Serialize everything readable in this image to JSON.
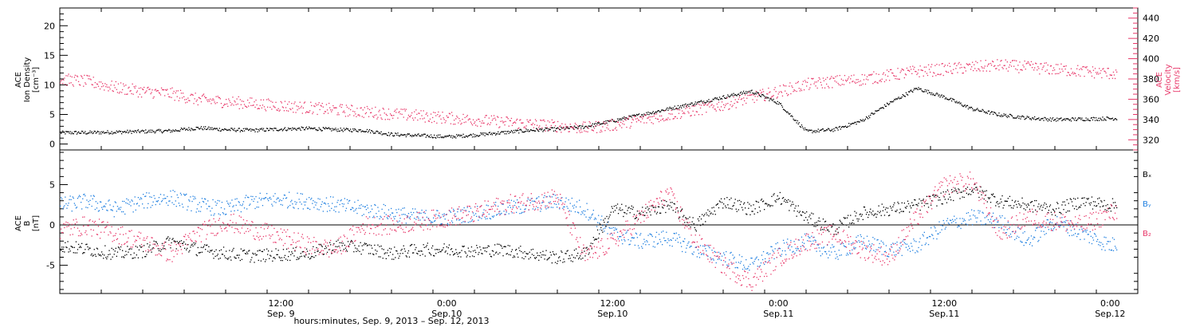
{
  "colors": {
    "black": "#000000",
    "pink": "#e8386a",
    "blue": "#1f7fe0"
  },
  "chart_data": [
    {
      "type": "scatter",
      "panel": "top",
      "ylabel_left": [
        "ACE",
        "Ion Density",
        "[cm⁻³]"
      ],
      "ylabel_right": [
        "ACE",
        "Velocity",
        "[km/s]"
      ],
      "left_ylim": [
        -1,
        23
      ],
      "left_ticks": [
        "0",
        "5",
        "10",
        "15",
        "20"
      ],
      "right_ylim": [
        310,
        450
      ],
      "right_ticks": [
        "320",
        "340",
        "360",
        "380",
        "400",
        "420",
        "440"
      ],
      "series": [
        {
          "color": "black",
          "axis": "left",
          "x_hours": [
            0,
            2,
            4,
            6,
            8,
            10,
            12,
            14,
            16,
            18,
            20,
            22,
            24,
            26,
            28,
            30,
            32,
            34,
            36,
            38,
            40,
            42,
            44,
            46,
            48,
            50,
            52,
            54,
            56,
            58,
            60,
            62,
            64,
            66,
            68,
            70,
            72,
            74,
            76,
            78,
            80,
            82,
            84,
            86,
            88,
            90,
            92,
            94,
            96,
            98,
            100,
            102,
            104,
            106,
            108,
            110,
            112,
            114,
            116,
            118,
            120,
            122
          ],
          "values": [
            2.0,
            2.0,
            2.1,
            2.2,
            2.3,
            2.8,
            2.5,
            2.4,
            2.6,
            2.7,
            2.5,
            2.4,
            1.7,
            1.5,
            1.3,
            1.6,
            2.0,
            2.4,
            2.6,
            3.0,
            4.0,
            5.0,
            6.0,
            7.0,
            8.0,
            9.0,
            7.0,
            2.2,
            2.5,
            4.0,
            7.0,
            9.5,
            8.0,
            6.0,
            5.0,
            4.5,
            4.2,
            4.3,
            4.4,
            4.5,
            4.6,
            4.8,
            5.0,
            5.5,
            5.8,
            6.0,
            3.8,
            3.6,
            3.5,
            3.5,
            3.4,
            3.5,
            3.6,
            3.5,
            3.6,
            3.7,
            3.5,
            3.6,
            3.8,
            3.9,
            4.2,
            4.5
          ],
          "spread": 0.3
        },
        {
          "color": "pink",
          "axis": "right",
          "x_hours": [
            0,
            2,
            4,
            6,
            8,
            10,
            12,
            14,
            16,
            18,
            20,
            22,
            24,
            26,
            28,
            30,
            32,
            34,
            36,
            38,
            40,
            42,
            44,
            46,
            48,
            50,
            52,
            54,
            56,
            58,
            60,
            62,
            64,
            66,
            68,
            70,
            72,
            74,
            76,
            78,
            80,
            82,
            84,
            86,
            88,
            90,
            92,
            94,
            96,
            98,
            100,
            102,
            104,
            106,
            108,
            110,
            112,
            114,
            116,
            118,
            120,
            122
          ],
          "values": [
            380,
            378,
            372,
            368,
            366,
            360,
            358,
            356,
            354,
            352,
            350,
            348,
            346,
            344,
            342,
            340,
            338,
            336,
            334,
            332,
            335,
            340,
            345,
            350,
            355,
            362,
            368,
            375,
            378,
            380,
            384,
            388,
            390,
            392,
            394,
            392,
            390,
            388,
            386,
            384,
            385,
            388,
            392,
            394,
            396,
            395,
            386,
            380,
            378,
            382,
            388,
            392,
            395,
            396,
            398,
            396,
            394,
            396,
            398,
            400,
            398,
            396
          ],
          "spread": 6
        }
      ]
    },
    {
      "type": "scatter",
      "panel": "bottom",
      "ylabel_left": [
        "ACE",
        "B",
        "[nT]"
      ],
      "ylim": [
        -8.5,
        9.3
      ],
      "ticks": [
        "-5",
        "0",
        "5"
      ],
      "zero_line": true,
      "legend": [
        "Bₓ",
        "Bᵧ",
        "B₂"
      ],
      "series": [
        {
          "color": "black",
          "name": "Bₓ",
          "x_hours": [
            0,
            2,
            4,
            6,
            8,
            10,
            12,
            14,
            16,
            18,
            20,
            22,
            24,
            26,
            28,
            30,
            32,
            34,
            36,
            38,
            40,
            42,
            44,
            46,
            48,
            50,
            52,
            54,
            56,
            58,
            60,
            62,
            64,
            66,
            68,
            70,
            72,
            74,
            76,
            78,
            80,
            82,
            84,
            86,
            88,
            90,
            92,
            94,
            96,
            98,
            100,
            102,
            104,
            106,
            108,
            110,
            112,
            114,
            116,
            118,
            120,
            122
          ],
          "values": [
            -2.5,
            -3.0,
            -3.5,
            -3.2,
            -2.0,
            -3.0,
            -3.5,
            -3.8,
            -3.6,
            -3.5,
            -2.5,
            -2.8,
            -3.5,
            -3.0,
            -3.0,
            -3.2,
            -3.0,
            -3.5,
            -4.0,
            -3.5,
            2.0,
            1.5,
            2.5,
            0.0,
            3.0,
            2.0,
            3.5,
            1.0,
            -0.5,
            1.5,
            2.0,
            2.5,
            3.5,
            4.5,
            3.0,
            2.5,
            2.0,
            3.0,
            2.5,
            3.0,
            3.5,
            4.0,
            3.5,
            2.0,
            1.0,
            0.5,
            -0.5,
            1.0,
            2.0,
            0.5,
            -0.5,
            1.0,
            0.0,
            -0.5,
            1.0,
            0.5,
            0.0,
            -1.0,
            -1.5,
            -1.0,
            -1.5,
            -2.0
          ],
          "spread": 0.8
        },
        {
          "color": "blue",
          "name": "Bᵧ",
          "x_hours": [
            0,
            2,
            4,
            6,
            8,
            10,
            12,
            14,
            16,
            18,
            20,
            22,
            24,
            26,
            28,
            30,
            32,
            34,
            36,
            38,
            40,
            42,
            44,
            46,
            48,
            50,
            52,
            54,
            56,
            58,
            60,
            62,
            64,
            66,
            68,
            70,
            72,
            74,
            76,
            78,
            80,
            82,
            84,
            86,
            88,
            90,
            92,
            94,
            96,
            98,
            100,
            102,
            104,
            106,
            108,
            110,
            112,
            114,
            116,
            118,
            120,
            122
          ],
          "values": [
            2.5,
            3.0,
            2.0,
            3.0,
            3.5,
            2.5,
            2.0,
            3.0,
            3.2,
            3.0,
            2.5,
            2.0,
            1.5,
            1.0,
            1.0,
            1.5,
            2.0,
            2.5,
            3.0,
            2.0,
            -1.0,
            -2.0,
            -1.5,
            -3.0,
            -4.0,
            -5.0,
            -3.0,
            -2.0,
            -3.5,
            -2.0,
            -3.0,
            -2.5,
            0.0,
            1.0,
            0.5,
            -2.0,
            0.5,
            -1.0,
            -2.5,
            -1.5,
            -3.0,
            -1.0,
            0.0,
            -2.0,
            -2.0,
            -3.0,
            -3.0,
            -2.5,
            -2.0,
            -3.0,
            -2.5,
            -3.5,
            -2.0,
            -2.5,
            -3.0,
            -2.0,
            -3.0,
            -2.5,
            -3.0,
            -2.5,
            -2.5,
            -3.0
          ],
          "spread": 1.0
        },
        {
          "color": "pink",
          "name": "B₂",
          "x_hours": [
            0,
            2,
            4,
            6,
            8,
            10,
            12,
            14,
            16,
            18,
            20,
            22,
            24,
            26,
            28,
            30,
            32,
            34,
            36,
            38,
            40,
            42,
            44,
            46,
            48,
            50,
            52,
            54,
            56,
            58,
            60,
            62,
            64,
            66,
            68,
            70,
            72,
            74,
            76,
            78,
            80,
            82,
            84,
            86,
            88,
            90,
            92,
            94,
            96,
            98,
            100,
            102,
            104,
            106,
            108,
            110,
            112,
            114,
            116,
            118,
            120,
            122
          ],
          "values": [
            -0.5,
            0.0,
            -1.0,
            -2.0,
            -3.5,
            -1.0,
            0.5,
            -0.5,
            -1.5,
            -2.5,
            -3.0,
            0.0,
            0.0,
            0.5,
            1.0,
            1.5,
            2.5,
            3.0,
            3.5,
            -4.0,
            -2.0,
            1.0,
            4.0,
            -2.0,
            -5.0,
            -7.0,
            -4.0,
            -2.0,
            -1.0,
            -3.0,
            -4.0,
            1.0,
            5.0,
            5.5,
            -1.0,
            1.0,
            0.5,
            0.0,
            1.5,
            2.0,
            1.0,
            -1.0,
            -2.0,
            -1.0,
            -3.0,
            -4.0,
            -2.0,
            -3.5,
            -1.0,
            -3.0,
            -1.0,
            -3.5,
            0.5,
            2.0,
            1.5,
            -1.0,
            -3.0,
            1.5,
            2.0,
            1.0,
            -2.0,
            -0.5
          ],
          "spread": 1.2
        }
      ]
    }
  ],
  "x_axis": {
    "tick_labels_top": [
      "12:00",
      "0:00",
      "12:00",
      "0:00",
      "12:00",
      "0:00"
    ],
    "tick_labels_bottom": [
      "Sep. 9",
      "Sep.10",
      "Sep.10",
      "Sep.11",
      "Sep.11",
      "Sep.12"
    ],
    "tick_hours": [
      12,
      24,
      36,
      48,
      60,
      72
    ],
    "range_hours": [
      -4,
      74
    ],
    "xlabel": "hours:minutes, Sep.  9, 2013 – Sep. 12, 2013"
  }
}
